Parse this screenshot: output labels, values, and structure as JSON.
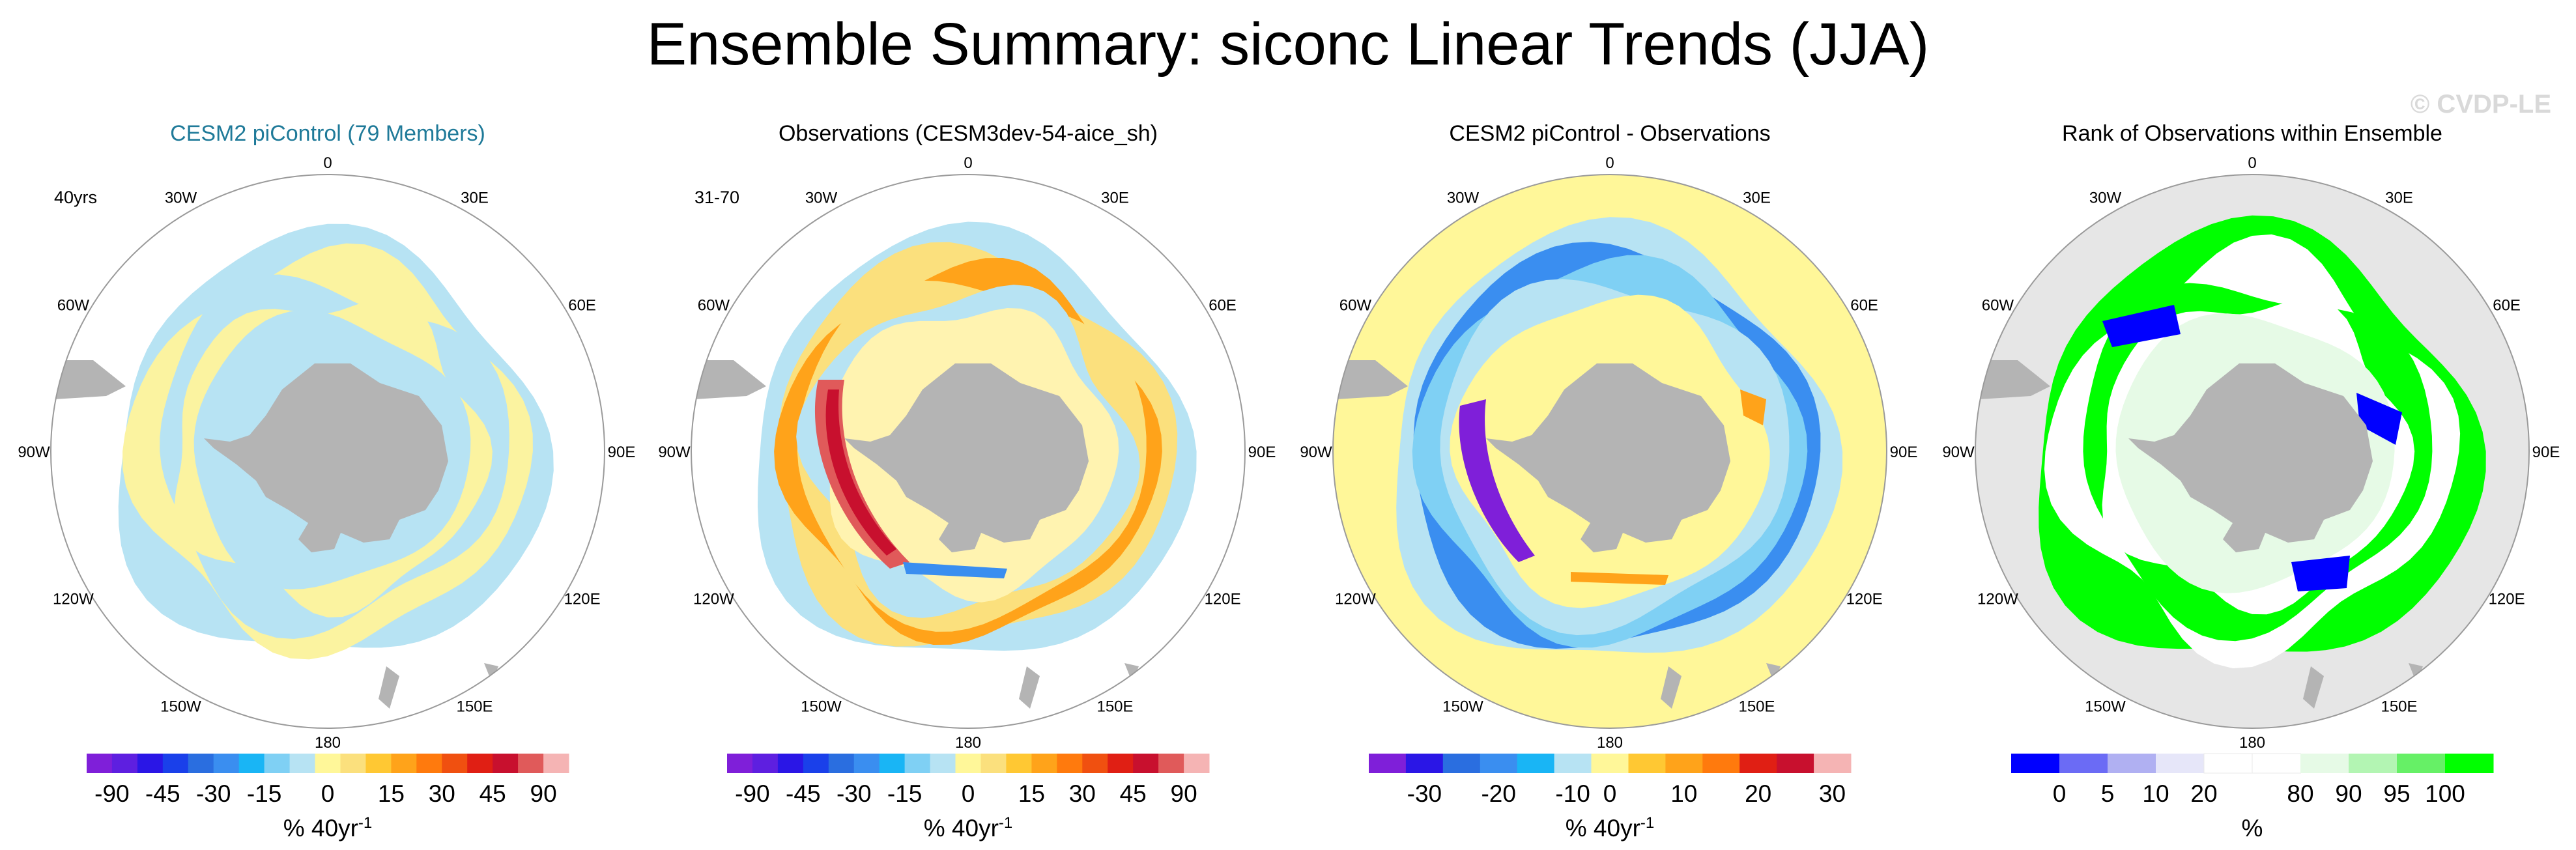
{
  "title": "Ensemble Summary: siconc Linear Trends (JJA)",
  "watermark": "© CVDP-LE",
  "colors": {
    "land": "#b4b4b4",
    "ocean_outline": "#9a9a9a",
    "title_teal": "#1f7a99",
    "diff_background": "#fff799",
    "rank_background": "#e6e6e6"
  },
  "chart_data": [
    {
      "type": "map",
      "projection": "south-polar-stereographic",
      "title": "CESM2 piControl (79 Members)",
      "title_color": "#1f7a99",
      "corner_label": "40yrs",
      "longitude_labels": [
        "0",
        "30E",
        "60E",
        "90E",
        "120E",
        "150E",
        "180",
        "150W",
        "120W",
        "90W",
        "60W",
        "30W"
      ],
      "field": "ensemble-mean",
      "colorbar": {
        "colors": [
          "#7f1fd9",
          "#5e1fe0",
          "#2a16e6",
          "#1a40ea",
          "#2a6ee0",
          "#3a8ef0",
          "#19b5f5",
          "#7fd0f4",
          "#b7e3f3",
          "#fff799",
          "#fbe07d",
          "#ffc833",
          "#ffa31a",
          "#ff7a0d",
          "#f05010",
          "#e01f14",
          "#c8102e",
          "#e05a5a",
          "#f5b4b4"
        ],
        "tick_labels": [
          "-90",
          "-45",
          "-30",
          "-15",
          "0",
          "15",
          "30",
          "45",
          "90"
        ],
        "label": "% 40yr",
        "label_superscript": "-1"
      }
    },
    {
      "type": "map",
      "projection": "south-polar-stereographic",
      "title": "Observations (CESM3dev-54-aice_sh)",
      "title_color": "#000000",
      "corner_label": "31-70",
      "longitude_labels": [
        "0",
        "30E",
        "60E",
        "90E",
        "120E",
        "150E",
        "180",
        "150W",
        "120W",
        "90W",
        "60W",
        "30W"
      ],
      "field": "observations",
      "colorbar": {
        "colors": [
          "#7f1fd9",
          "#5e1fe0",
          "#2a16e6",
          "#1a40ea",
          "#2a6ee0",
          "#3a8ef0",
          "#19b5f5",
          "#7fd0f4",
          "#b7e3f3",
          "#fff799",
          "#fbe07d",
          "#ffc833",
          "#ffa31a",
          "#ff7a0d",
          "#f05010",
          "#e01f14",
          "#c8102e",
          "#e05a5a",
          "#f5b4b4"
        ],
        "tick_labels": [
          "-90",
          "-45",
          "-30",
          "-15",
          "0",
          "15",
          "30",
          "45",
          "90"
        ],
        "label": "% 40yr",
        "label_superscript": "-1"
      }
    },
    {
      "type": "map",
      "projection": "south-polar-stereographic",
      "title": "CESM2 piControl - Observations",
      "title_color": "#000000",
      "corner_label": "",
      "longitude_labels": [
        "0",
        "30E",
        "60E",
        "90E",
        "120E",
        "150E",
        "180",
        "150W",
        "120W",
        "90W",
        "60W",
        "30W"
      ],
      "field": "difference",
      "colorbar": {
        "colors": [
          "#7f1fd9",
          "#2a16e6",
          "#2a6ee0",
          "#3a8ef0",
          "#19b5f5",
          "#b7e3f3",
          "#fff799",
          "#ffc833",
          "#ffa31a",
          "#ff7a0d",
          "#e01f14",
          "#c8102e",
          "#f5b4b4"
        ],
        "tick_labels": [
          "-30",
          "-20",
          "-10",
          "0",
          "10",
          "20",
          "30"
        ],
        "label": "% 40yr",
        "label_superscript": "-1"
      }
    },
    {
      "type": "map",
      "projection": "south-polar-stereographic",
      "title": "Rank of Observations within Ensemble",
      "title_color": "#000000",
      "corner_label": "",
      "longitude_labels": [
        "0",
        "30E",
        "60E",
        "90E",
        "120E",
        "150E",
        "180",
        "150W",
        "120W",
        "90W",
        "60W",
        "30W"
      ],
      "field": "rank",
      "colorbar": {
        "colors": [
          "#0000ff",
          "#6b6bf5",
          "#b0b0f2",
          "#e6e6f9",
          "#ffffff",
          "#ffffff",
          "#e6fae6",
          "#b3f5b3",
          "#66f066",
          "#00ff00"
        ],
        "tick_labels": [
          "0",
          "5",
          "10",
          "20",
          "80",
          "90",
          "95",
          "100"
        ],
        "label": "%",
        "label_superscript": ""
      }
    }
  ]
}
